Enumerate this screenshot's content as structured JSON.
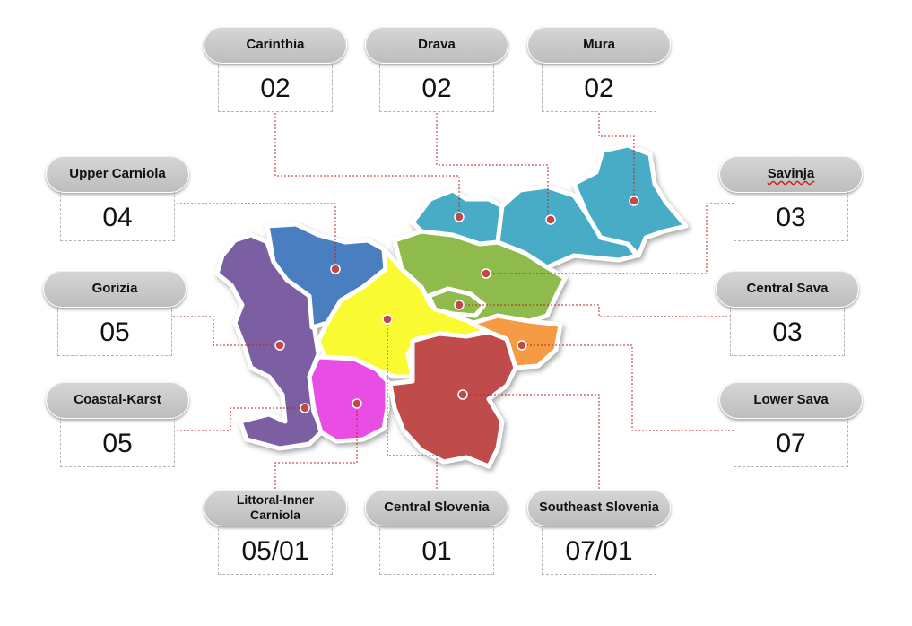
{
  "regions": [
    {
      "id": "carinthia",
      "name": "Carinthia",
      "value": "02",
      "color": "#4a7fc0"
    },
    {
      "id": "drava",
      "name": "Drava",
      "value": "02",
      "color": "#4aacc6"
    },
    {
      "id": "mura",
      "name": "Mura",
      "value": "02",
      "color": "#4aacc6"
    },
    {
      "id": "upper-carniola",
      "name": "Upper Carniola",
      "value": "04",
      "color": "#4a7fc0"
    },
    {
      "id": "savinja",
      "name": "Savinja",
      "value": "03",
      "color": "#8fbb4e"
    },
    {
      "id": "gorizia",
      "name": "Gorizia",
      "value": "05",
      "color": "#7c5fa3"
    },
    {
      "id": "central-sava",
      "name": "Central Sava",
      "value": "03",
      "color": "#8fbb4e"
    },
    {
      "id": "coastal-karst",
      "name": "Coastal-Karst",
      "value": "05",
      "color": "#7c5fa3"
    },
    {
      "id": "lower-sava",
      "name": "Lower Sava",
      "value": "07",
      "color": "#f59a45"
    },
    {
      "id": "littoral-inner-carniola",
      "name": "Littoral-Inner Carniola",
      "value": "05/01",
      "color": "#e84ee4"
    },
    {
      "id": "central-slovenia",
      "name": "Central Slovenia",
      "value": "01",
      "color": "#fafa30"
    },
    {
      "id": "southeast-slovenia",
      "name": "Southeast Slovenia",
      "value": "07/01",
      "color": "#c04b4b"
    }
  ]
}
